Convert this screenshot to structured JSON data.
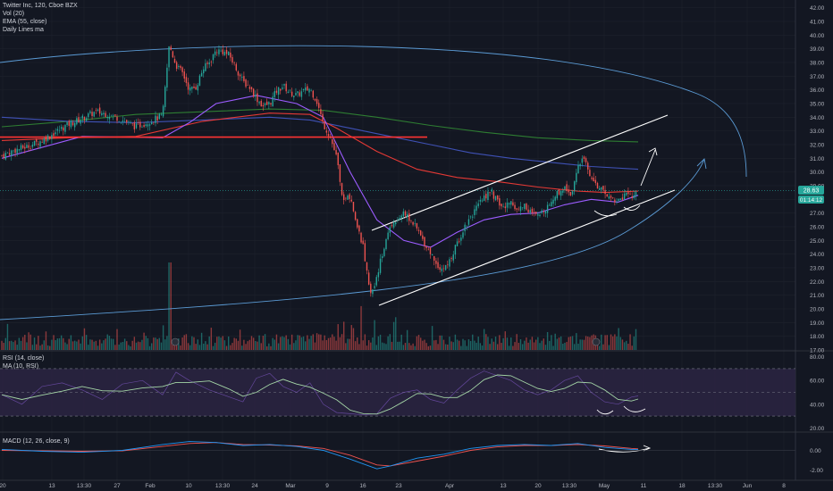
{
  "main_legend": {
    "title": "Twitter Inc, 120, Cboe BZX",
    "vol": "Vol (20)",
    "ema": "EMA (55, close)",
    "daily": "Daily Lines ma"
  },
  "rsi_legend": {
    "rsi": "RSI (14, close)",
    "ma": "MA (10, RSI)"
  },
  "macd_legend": {
    "macd": "MACD (12, 26, close, 9)"
  },
  "price_badges": {
    "last": "28.63",
    "countdown": "01:14:12"
  },
  "colors": {
    "background": "#131722",
    "grid": "#1e222d",
    "axis_text": "#b2b5be",
    "up": "#26a69a",
    "down": "#ef5350",
    "ema55": "#9c5cff",
    "ma_red": "#e53935",
    "ma_blue": "#3f51b5",
    "ma_green": "#2e7d32",
    "horizontal_line": "#ff3333",
    "arc": "#5b9bd5",
    "channel": "#ffffff",
    "rsi_fill": "#2a2440",
    "rsi_band": "#3b2d55"
  },
  "chart_data": [
    {
      "type": "candlestick",
      "pane": "price",
      "y_axis_ticks": [
        42,
        41,
        40,
        39,
        38,
        37,
        36,
        35,
        34,
        33,
        32,
        31,
        30,
        29,
        28,
        27,
        26,
        25,
        24,
        23,
        22,
        21,
        20,
        19,
        18,
        17
      ],
      "y_axis_labels": [
        "42.00",
        "41.00",
        "40.00",
        "39.00",
        "38.00",
        "37.00",
        "36.00",
        "35.00",
        "34.00",
        "33.00",
        "32.00",
        "31.00",
        "30.00",
        "29.00",
        "28.00",
        "27.00",
        "26.00",
        "25.00",
        "24.00",
        "23.00",
        "22.00",
        "21.00",
        "20.00",
        "19.00",
        "18.00",
        "17.00"
      ],
      "ylim": [
        17,
        42.3
      ],
      "x_axis_labels": [
        "20",
        "13",
        "13:30",
        "27",
        "Feb",
        "10",
        "13:30",
        "24",
        "Mar",
        "9",
        "16",
        "23",
        "Apr",
        "13",
        "20",
        "13:30",
        "May",
        "11",
        "18",
        "13:30",
        "Jun",
        "8"
      ],
      "close_path": [
        [
          0,
          31.2
        ],
        [
          2,
          31.6
        ],
        [
          4,
          31.9
        ],
        [
          6,
          32.3
        ],
        [
          8,
          32.9
        ],
        [
          10,
          33.5
        ],
        [
          12,
          33.9
        ],
        [
          14,
          34.4
        ],
        [
          16,
          34.2
        ],
        [
          18,
          33.8
        ],
        [
          20,
          33.3
        ],
        [
          22,
          33.7
        ],
        [
          24,
          34.1
        ],
        [
          25,
          39.3
        ],
        [
          26,
          37.8
        ],
        [
          27,
          37.2
        ],
        [
          28,
          36.0
        ],
        [
          29,
          36.2
        ],
        [
          30,
          37.5
        ],
        [
          31,
          38.0
        ],
        [
          32,
          38.9
        ],
        [
          33,
          38.8
        ],
        [
          34,
          38.5
        ],
        [
          36,
          36.6
        ],
        [
          37,
          36.2
        ],
        [
          38,
          35.4
        ],
        [
          39,
          34.8
        ],
        [
          40,
          35.0
        ],
        [
          41,
          35.9
        ],
        [
          42,
          36.3
        ],
        [
          43,
          35.8
        ],
        [
          44,
          35.6
        ],
        [
          45,
          35.9
        ],
        [
          46,
          36.1
        ],
        [
          47,
          35.2
        ],
        [
          48,
          33.5
        ],
        [
          49,
          32.6
        ],
        [
          50,
          31.0
        ],
        [
          51,
          27.8
        ],
        [
          52,
          28.3
        ],
        [
          53,
          26.0
        ],
        [
          54,
          24.5
        ],
        [
          55,
          20.8
        ],
        [
          56,
          22.5
        ],
        [
          57,
          24.3
        ],
        [
          58,
          26.1
        ],
        [
          59,
          26.6
        ],
        [
          60,
          27.0
        ],
        [
          61,
          26.5
        ],
        [
          62,
          25.8
        ],
        [
          63,
          24.9
        ],
        [
          64,
          24.1
        ],
        [
          65,
          23.2
        ],
        [
          66,
          22.9
        ],
        [
          67,
          23.6
        ],
        [
          68,
          24.8
        ],
        [
          69,
          25.9
        ],
        [
          70,
          26.8
        ],
        [
          71,
          27.4
        ],
        [
          72,
          28.2
        ],
        [
          73,
          28.6
        ],
        [
          74,
          27.8
        ],
        [
          75,
          27.3
        ],
        [
          76,
          27.9
        ],
        [
          77,
          27.2
        ],
        [
          78,
          27.6
        ],
        [
          79,
          27.0
        ],
        [
          80,
          26.7
        ],
        [
          81,
          27.3
        ],
        [
          82,
          27.8
        ],
        [
          83,
          28.5
        ],
        [
          84,
          28.9
        ],
        [
          85,
          28.4
        ],
        [
          86,
          30.3
        ],
        [
          87,
          31.0
        ],
        [
          88,
          29.6
        ],
        [
          89,
          28.9
        ],
        [
          90,
          28.4
        ],
        [
          91,
          28.1
        ],
        [
          92,
          27.9
        ],
        [
          93,
          28.3
        ],
        [
          94,
          28.2
        ],
        [
          95,
          28.6
        ]
      ],
      "overlays": {
        "ema55": [
          [
            0,
            31.0
          ],
          [
            12,
            32.6
          ],
          [
            24,
            32.5
          ],
          [
            28,
            33.6
          ],
          [
            32,
            35.0
          ],
          [
            38,
            35.6
          ],
          [
            44,
            35.0
          ],
          [
            48,
            34.0
          ],
          [
            52,
            30.0
          ],
          [
            56,
            26.5
          ],
          [
            60,
            25.0
          ],
          [
            64,
            24.5
          ],
          [
            68,
            25.6
          ],
          [
            72,
            26.5
          ],
          [
            76,
            26.9
          ],
          [
            80,
            27.0
          ],
          [
            84,
            27.6
          ],
          [
            88,
            28.0
          ],
          [
            92,
            27.8
          ],
          [
            95,
            28.3
          ]
        ],
        "ma_red": [
          [
            0,
            32.3
          ],
          [
            10,
            32.5
          ],
          [
            20,
            32.6
          ],
          [
            30,
            33.7
          ],
          [
            40,
            34.3
          ],
          [
            46,
            34.2
          ],
          [
            50,
            33.2
          ],
          [
            56,
            31.5
          ],
          [
            62,
            30.2
          ],
          [
            68,
            29.6
          ],
          [
            74,
            29.3
          ],
          [
            80,
            28.9
          ],
          [
            86,
            28.6
          ],
          [
            90,
            28.5
          ],
          [
            95,
            28.6
          ]
        ],
        "ma_blue": [
          [
            0,
            34.0
          ],
          [
            10,
            33.7
          ],
          [
            20,
            33.6
          ],
          [
            30,
            33.8
          ],
          [
            40,
            34.0
          ],
          [
            46,
            33.8
          ],
          [
            52,
            33.2
          ],
          [
            58,
            32.6
          ],
          [
            64,
            32.0
          ],
          [
            70,
            31.4
          ],
          [
            76,
            31.0
          ],
          [
            82,
            30.7
          ],
          [
            88,
            30.4
          ],
          [
            95,
            30.2
          ]
        ],
        "ma_green": [
          [
            0,
            33.3
          ],
          [
            10,
            33.7
          ],
          [
            20,
            34.2
          ],
          [
            30,
            34.4
          ],
          [
            40,
            34.6
          ],
          [
            48,
            34.5
          ],
          [
            56,
            34.0
          ],
          [
            64,
            33.4
          ],
          [
            72,
            32.9
          ],
          [
            80,
            32.5
          ],
          [
            88,
            32.3
          ],
          [
            95,
            32.2
          ]
        ]
      },
      "horizontal_support": 32.55,
      "horizontal_last": 28.63
    },
    {
      "type": "bar",
      "pane": "volume",
      "series_name": "Vol (20)"
    },
    {
      "type": "line",
      "pane": "rsi",
      "y_axis_labels": [
        "80.00",
        "60.00",
        "40.00",
        "20.00"
      ],
      "ylim": [
        18,
        82
      ],
      "band": [
        30,
        70
      ],
      "rsi": [
        [
          0,
          48
        ],
        [
          3,
          40
        ],
        [
          6,
          55
        ],
        [
          9,
          58
        ],
        [
          12,
          52
        ],
        [
          15,
          44
        ],
        [
          18,
          57
        ],
        [
          21,
          60
        ],
        [
          24,
          48
        ],
        [
          26,
          67
        ],
        [
          28,
          60
        ],
        [
          31,
          52
        ],
        [
          34,
          46
        ],
        [
          36,
          42
        ],
        [
          38,
          62
        ],
        [
          40,
          66
        ],
        [
          42,
          55
        ],
        [
          44,
          50
        ],
        [
          46,
          58
        ],
        [
          48,
          40
        ],
        [
          50,
          33
        ],
        [
          52,
          32
        ],
        [
          54,
          31
        ],
        [
          56,
          32
        ],
        [
          58,
          45
        ],
        [
          60,
          50
        ],
        [
          62,
          52
        ],
        [
          64,
          44
        ],
        [
          66,
          41
        ],
        [
          68,
          52
        ],
        [
          70,
          62
        ],
        [
          72,
          68
        ],
        [
          74,
          64
        ],
        [
          76,
          60
        ],
        [
          78,
          52
        ],
        [
          80,
          48
        ],
        [
          82,
          52
        ],
        [
          84,
          60
        ],
        [
          86,
          64
        ],
        [
          88,
          50
        ],
        [
          90,
          42
        ],
        [
          92,
          40
        ],
        [
          94,
          46
        ],
        [
          95,
          47
        ]
      ]
    },
    {
      "type": "line",
      "pane": "macd",
      "y_axis_labels": [
        "0.00",
        "-2.00"
      ],
      "ylim": [
        -2.8,
        1.6
      ],
      "macd": [
        [
          0,
          0.1
        ],
        [
          6,
          -0.1
        ],
        [
          12,
          -0.2
        ],
        [
          18,
          0.0
        ],
        [
          24,
          0.6
        ],
        [
          28,
          0.9
        ],
        [
          32,
          0.8
        ],
        [
          36,
          0.5
        ],
        [
          40,
          0.6
        ],
        [
          44,
          0.4
        ],
        [
          48,
          0.0
        ],
        [
          52,
          -0.9
        ],
        [
          56,
          -1.9
        ],
        [
          58,
          -1.6
        ],
        [
          62,
          -0.8
        ],
        [
          66,
          -0.4
        ],
        [
          70,
          0.2
        ],
        [
          74,
          0.5
        ],
        [
          78,
          0.6
        ],
        [
          82,
          0.5
        ],
        [
          86,
          0.7
        ],
        [
          90,
          0.3
        ],
        [
          94,
          0.1
        ],
        [
          95,
          0.1
        ]
      ],
      "signal": [
        [
          0,
          0.0
        ],
        [
          6,
          -0.05
        ],
        [
          12,
          -0.1
        ],
        [
          18,
          -0.05
        ],
        [
          24,
          0.4
        ],
        [
          28,
          0.7
        ],
        [
          32,
          0.8
        ],
        [
          36,
          0.6
        ],
        [
          40,
          0.55
        ],
        [
          44,
          0.45
        ],
        [
          48,
          0.2
        ],
        [
          52,
          -0.5
        ],
        [
          56,
          -1.5
        ],
        [
          58,
          -1.6
        ],
        [
          62,
          -1.1
        ],
        [
          66,
          -0.6
        ],
        [
          70,
          0.0
        ],
        [
          74,
          0.35
        ],
        [
          78,
          0.5
        ],
        [
          82,
          0.5
        ],
        [
          86,
          0.6
        ],
        [
          90,
          0.45
        ],
        [
          94,
          0.2
        ],
        [
          95,
          0.15
        ]
      ]
    }
  ]
}
